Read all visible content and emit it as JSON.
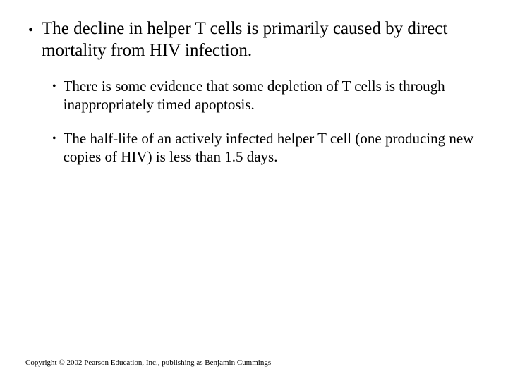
{
  "slide": {
    "background_color": "#ffffff",
    "text_color": "#000000",
    "font_family": "Times New Roman",
    "main_bullet": {
      "text": "The decline in helper T cells is primarily caused by direct mortality from HIV infection.",
      "fontsize_pt": 25,
      "bullet_char": "•"
    },
    "sub_bullets": [
      {
        "text": "There is some evidence that some depletion of T cells is through inappropriately timed apoptosis.",
        "fontsize_pt": 21,
        "bullet_char": "•"
      },
      {
        "text": "The half-life of an actively infected helper T cell (one producing new copies of HIV) is less than 1.5 days.",
        "fontsize_pt": 21,
        "bullet_char": "•"
      }
    ],
    "copyright": "Copyright © 2002 Pearson Education, Inc., publishing as Benjamin Cummings",
    "copyright_fontsize_pt": 11
  }
}
